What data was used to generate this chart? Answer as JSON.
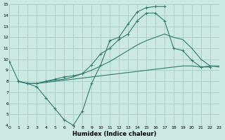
{
  "xlabel": "Humidex (Indice chaleur)",
  "xlim": [
    0,
    23
  ],
  "ylim": [
    4,
    15
  ],
  "xticks": [
    0,
    1,
    2,
    3,
    4,
    5,
    6,
    7,
    8,
    9,
    10,
    11,
    12,
    13,
    14,
    15,
    16,
    17,
    18,
    19,
    20,
    21,
    22,
    23
  ],
  "yticks": [
    4,
    5,
    6,
    7,
    8,
    9,
    10,
    11,
    12,
    13,
    14,
    15
  ],
  "bg_color": "#cce8e3",
  "grid_color": "#aed0cc",
  "line_color": "#2e7d6e",
  "lines": [
    {
      "x": [
        0,
        1,
        2,
        3,
        4,
        5,
        6,
        7,
        8,
        9,
        10,
        11,
        12,
        13,
        14,
        15,
        16,
        17
      ],
      "y": [
        9.8,
        8.0,
        7.8,
        7.5,
        6.5,
        5.5,
        4.5,
        4.0,
        5.3,
        7.8,
        9.5,
        11.7,
        12.0,
        13.2,
        14.3,
        14.7,
        14.8,
        14.8
      ],
      "marker": "+"
    },
    {
      "x": [
        1,
        2,
        3,
        4,
        5,
        6,
        7,
        8,
        9,
        10,
        11,
        12,
        13,
        14,
        15,
        16,
        17,
        18,
        19,
        20,
        21,
        22
      ],
      "y": [
        8.0,
        7.8,
        7.8,
        8.0,
        8.2,
        8.4,
        8.5,
        8.7,
        9.5,
        10.5,
        11.0,
        11.8,
        12.3,
        13.5,
        14.2,
        14.2,
        13.5,
        11.0,
        10.8,
        9.9,
        9.3,
        9.3
      ],
      "marker": "+"
    },
    {
      "x": [
        1,
        2,
        3,
        4,
        5,
        6,
        7,
        8,
        9,
        10,
        11,
        12,
        13,
        14,
        15,
        16,
        17,
        18,
        19,
        20,
        21,
        22,
        23
      ],
      "y": [
        8.0,
        7.8,
        7.8,
        8.0,
        8.1,
        8.2,
        8.4,
        8.7,
        9.0,
        9.4,
        9.8,
        10.3,
        10.8,
        11.3,
        11.7,
        12.0,
        12.3,
        12.0,
        11.8,
        11.0,
        10.0,
        9.4,
        9.3
      ],
      "marker": null
    },
    {
      "x": [
        1,
        2,
        3,
        4,
        5,
        6,
        7,
        8,
        9,
        10,
        11,
        12,
        13,
        14,
        15,
        16,
        17,
        18,
        19,
        20,
        21,
        22,
        23
      ],
      "y": [
        8.0,
        7.8,
        7.8,
        7.9,
        8.0,
        8.1,
        8.2,
        8.3,
        8.4,
        8.5,
        8.6,
        8.7,
        8.8,
        8.9,
        9.0,
        9.1,
        9.2,
        9.3,
        9.4,
        9.4,
        9.3,
        9.4,
        9.4
      ],
      "marker": null
    }
  ]
}
